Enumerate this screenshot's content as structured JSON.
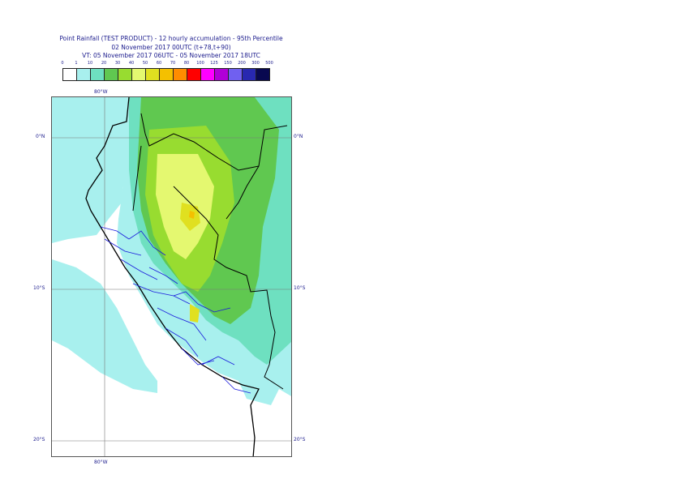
{
  "header": {
    "line1": "Point Rainfall (TEST PRODUCT) - 12 hourly accumulation - 95th Percentile",
    "line2": "02 November 2017 00UTC (t+78,t+90)",
    "line3": "VT: 05 November 2017 06UTC - 05 November 2017 18UTC"
  },
  "legend": {
    "ticks": [
      "0",
      "1",
      "10",
      "20",
      "30",
      "40",
      "50",
      "60",
      "70",
      "80",
      "100",
      "125",
      "150",
      "200",
      "300",
      "500"
    ],
    "colors": [
      "#ffffff",
      "#a8f0ee",
      "#6ee0c0",
      "#60c850",
      "#98dc30",
      "#e4f870",
      "#e0e020",
      "#f4c000",
      "#ff8c00",
      "#ff0000",
      "#ff00ff",
      "#b000d8",
      "#7060f0",
      "#2828b0",
      "#080850"
    ]
  },
  "axes": {
    "lon_top": "80°W",
    "lon_bottom": "80°W",
    "lat_0_left": "0°N",
    "lat_0_right": "0°N",
    "lat_10_left": "10°S",
    "lat_10_right": "10°S",
    "lat_20_left": "20°S",
    "lat_20_right": "20°S"
  }
}
